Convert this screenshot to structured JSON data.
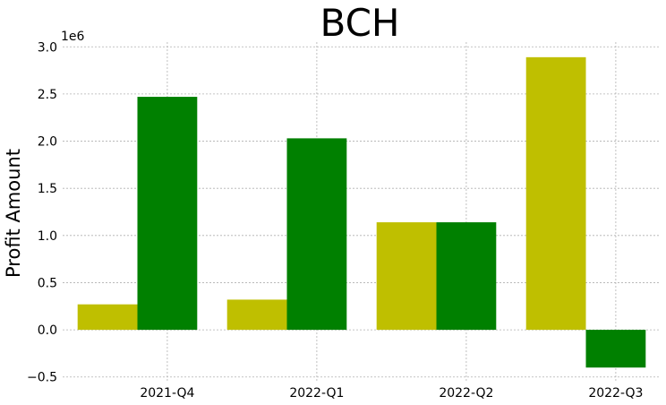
{
  "chart_data": {
    "type": "bar",
    "title": "BCH",
    "xlabel": "",
    "ylabel": "Profit Amount",
    "y_offset_label": "1e6",
    "categories": [
      "2021-Q4",
      "2022-Q1",
      "2022-Q2",
      "2022-Q3"
    ],
    "series": [
      {
        "color": "#bfbf00",
        "values": [
          270000,
          320000,
          1140000,
          2890000
        ]
      },
      {
        "color": "#008000",
        "values": [
          2470000,
          2030000,
          1140000,
          -400000
        ]
      }
    ],
    "ylim": [
      -0.55,
      3.05
    ],
    "y_ticks": [
      {
        "value": -0.5,
        "label": "−0.5"
      },
      {
        "value": 0.0,
        "label": "0.0"
      },
      {
        "value": 0.5,
        "label": "0.5"
      },
      {
        "value": 1.0,
        "label": "1.0"
      },
      {
        "value": 1.5,
        "label": "1.5"
      },
      {
        "value": 2.0,
        "label": "2.0"
      },
      {
        "value": 2.5,
        "label": "2.5"
      },
      {
        "value": 3.0,
        "label": "3.0"
      }
    ],
    "grid": true,
    "legend": "none"
  }
}
